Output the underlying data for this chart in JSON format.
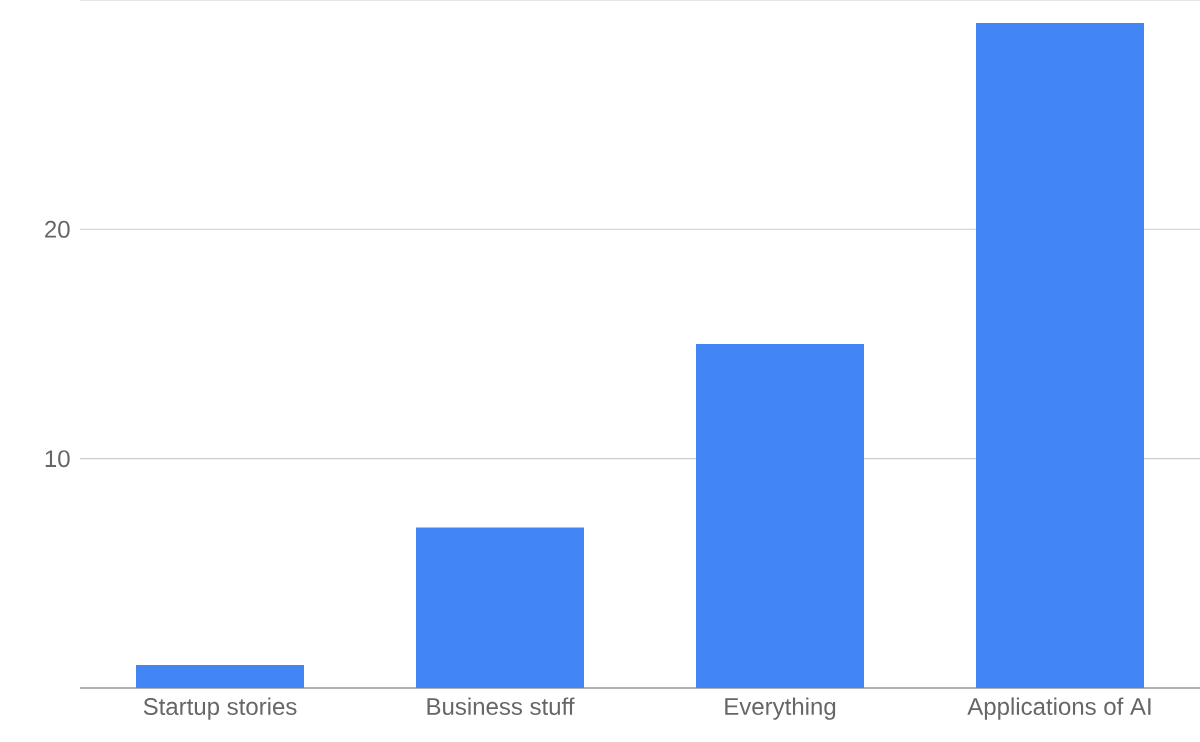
{
  "chart_data": {
    "type": "bar",
    "categories": [
      "Startup stories",
      "Business stuff",
      "Everything",
      "Applications of AI"
    ],
    "values": [
      1,
      7,
      15,
      29
    ],
    "color": "#4285f4",
    "ylim": [
      0,
      30
    ],
    "yticks": [
      10,
      20,
      {
        "value": 30,
        "label": null
      }
    ],
    "grid": "y"
  }
}
